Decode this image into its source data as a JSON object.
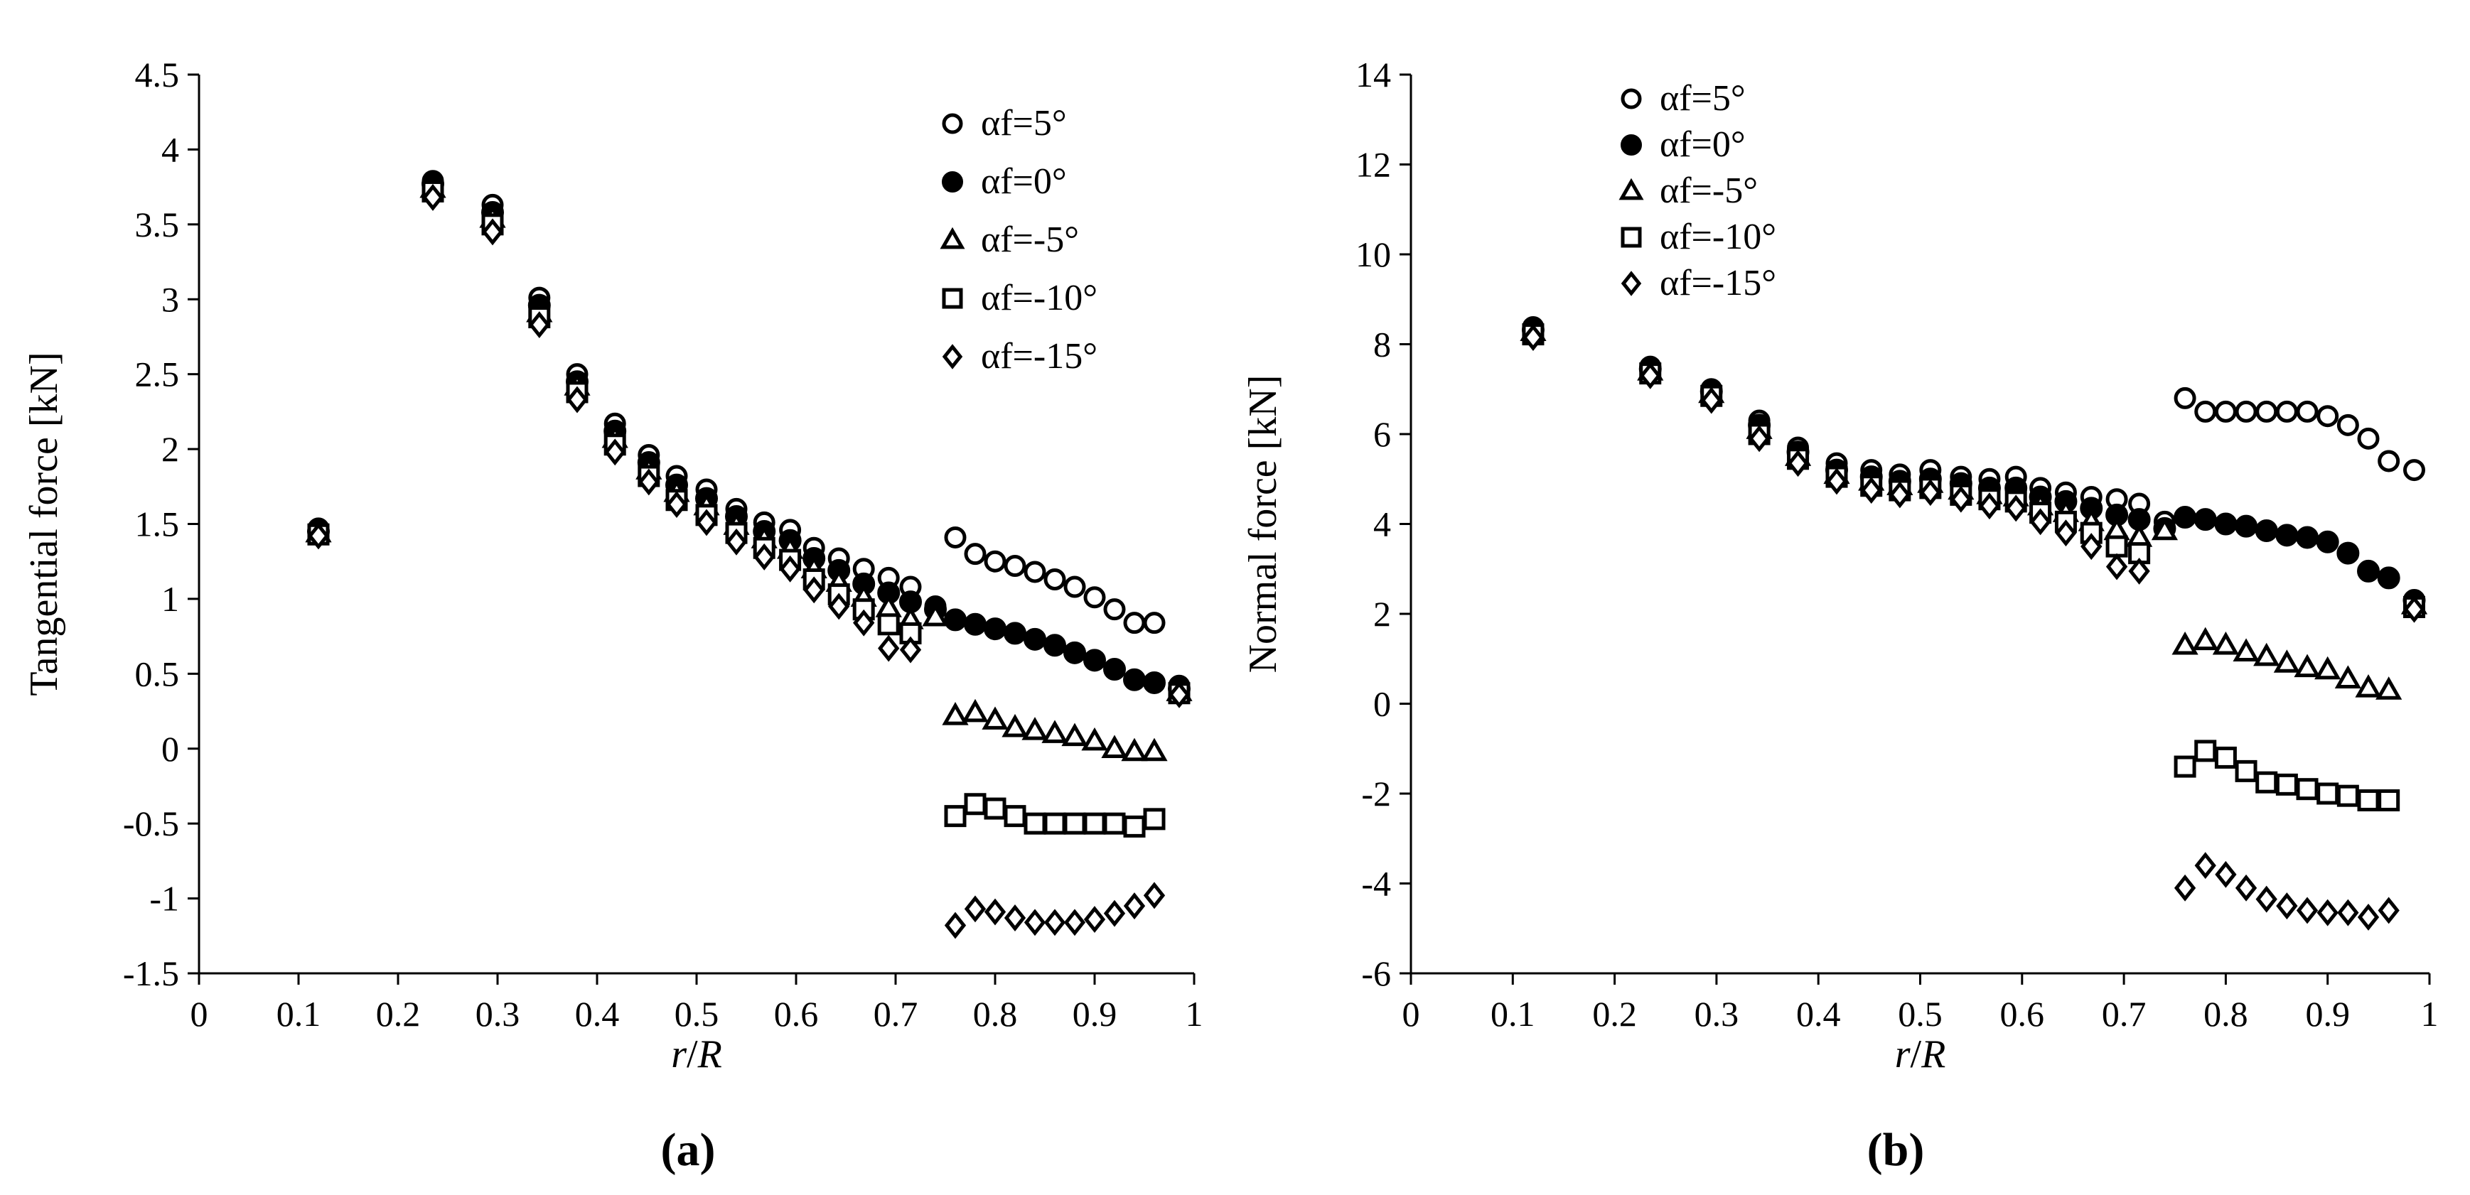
{
  "chart_data": [
    {
      "type": "scatter",
      "panel_label": "(a)",
      "xlabel_italic": "r",
      "xlabel_slash": "/",
      "xlabel_italic2": "R",
      "ylabel": "Tangential force [kN]",
      "xlim": [
        0,
        1
      ],
      "ylim": [
        -1.5,
        4.5
      ],
      "xticks": [
        0,
        0.1,
        0.2,
        0.3,
        0.4,
        0.5,
        0.6,
        0.7,
        0.8,
        0.9,
        1
      ],
      "xtick_labels": [
        "0",
        "0.1",
        "0.2",
        "0.3",
        "0.4",
        "0.5",
        "0.6",
        "0.7",
        "0.8",
        "0.9",
        "1"
      ],
      "yticks": [
        -1.5,
        -1,
        -0.5,
        0,
        0.5,
        1,
        1.5,
        2,
        2.5,
        3,
        3.5,
        4,
        4.5
      ],
      "ytick_labels": [
        "-1.5",
        "-1",
        "-0.5",
        "0",
        "0.5",
        "1",
        "1.5",
        "2",
        "2.5",
        "3",
        "3.5",
        "4",
        "4.5"
      ],
      "legend_position": "top-right",
      "series": [
        {
          "name": "αf=5°",
          "marker": "circle-open",
          "x": [
            0.12,
            0.235,
            0.295,
            0.342,
            0.38,
            0.418,
            0.452,
            0.48,
            0.51,
            0.54,
            0.568,
            0.594,
            0.618,
            0.643,
            0.668,
            0.693,
            0.715,
            0.74,
            0.76,
            0.78,
            0.8,
            0.82,
            0.84,
            0.86,
            0.88,
            0.9,
            0.92,
            0.94,
            0.96,
            0.985
          ],
          "y": [
            1.47,
            3.79,
            3.63,
            3.01,
            2.5,
            2.17,
            1.96,
            1.82,
            1.73,
            1.6,
            1.51,
            1.46,
            1.34,
            1.27,
            1.2,
            1.14,
            1.08,
            0.95,
            1.41,
            1.3,
            1.25,
            1.22,
            1.18,
            1.13,
            1.08,
            1.01,
            0.93,
            0.84,
            0.84,
            0.42
          ]
        },
        {
          "name": "αf=0°",
          "marker": "circle-filled",
          "x": [
            0.12,
            0.235,
            0.295,
            0.342,
            0.38,
            0.418,
            0.452,
            0.48,
            0.51,
            0.54,
            0.568,
            0.594,
            0.618,
            0.643,
            0.668,
            0.693,
            0.715,
            0.74,
            0.76,
            0.78,
            0.8,
            0.82,
            0.84,
            0.86,
            0.88,
            0.9,
            0.92,
            0.94,
            0.96,
            0.985
          ],
          "y": [
            1.45,
            3.77,
            3.58,
            2.96,
            2.45,
            2.12,
            1.91,
            1.76,
            1.67,
            1.55,
            1.45,
            1.39,
            1.27,
            1.19,
            1.1,
            1.04,
            0.98,
            0.93,
            0.86,
            0.83,
            0.8,
            0.77,
            0.73,
            0.69,
            0.64,
            0.59,
            0.53,
            0.46,
            0.44,
            0.4
          ]
        },
        {
          "name": "αf=-5°",
          "marker": "triangle-open",
          "x": [
            0.12,
            0.235,
            0.295,
            0.342,
            0.38,
            0.418,
            0.452,
            0.48,
            0.51,
            0.54,
            0.568,
            0.594,
            0.618,
            0.643,
            0.668,
            0.693,
            0.715,
            0.74,
            0.76,
            0.78,
            0.8,
            0.82,
            0.84,
            0.86,
            0.88,
            0.9,
            0.92,
            0.94,
            0.96,
            0.985
          ],
          "y": [
            1.44,
            3.74,
            3.54,
            2.91,
            2.42,
            2.07,
            1.86,
            1.71,
            1.62,
            1.49,
            1.4,
            1.33,
            1.2,
            1.11,
            1.01,
            0.94,
            0.86,
            0.88,
            0.22,
            0.24,
            0.19,
            0.14,
            0.12,
            0.1,
            0.08,
            0.05,
            0.0,
            -0.02,
            -0.02,
            0.38
          ]
        },
        {
          "name": "αf=-10°",
          "marker": "square-open",
          "x": [
            0.12,
            0.235,
            0.295,
            0.342,
            0.38,
            0.418,
            0.452,
            0.48,
            0.51,
            0.54,
            0.568,
            0.594,
            0.618,
            0.643,
            0.668,
            0.693,
            0.715,
            0.76,
            0.78,
            0.8,
            0.82,
            0.84,
            0.86,
            0.88,
            0.9,
            0.92,
            0.94,
            0.96,
            0.985
          ],
          "y": [
            1.43,
            3.72,
            3.5,
            2.88,
            2.38,
            2.03,
            1.82,
            1.66,
            1.56,
            1.44,
            1.34,
            1.26,
            1.13,
            1.03,
            0.93,
            0.83,
            0.77,
            -0.45,
            -0.37,
            -0.4,
            -0.45,
            -0.5,
            -0.5,
            -0.5,
            -0.5,
            -0.5,
            -0.52,
            -0.47,
            0.37
          ]
        },
        {
          "name": "αf=-15°",
          "marker": "diamond-open",
          "x": [
            0.12,
            0.235,
            0.295,
            0.342,
            0.38,
            0.418,
            0.452,
            0.48,
            0.51,
            0.54,
            0.568,
            0.594,
            0.618,
            0.643,
            0.668,
            0.693,
            0.715,
            0.76,
            0.78,
            0.8,
            0.82,
            0.84,
            0.86,
            0.88,
            0.9,
            0.92,
            0.94,
            0.96,
            0.985
          ],
          "y": [
            1.42,
            3.68,
            3.45,
            2.83,
            2.33,
            1.98,
            1.78,
            1.63,
            1.51,
            1.38,
            1.28,
            1.2,
            1.06,
            0.95,
            0.84,
            0.67,
            0.66,
            -1.18,
            -1.07,
            -1.09,
            -1.13,
            -1.16,
            -1.16,
            -1.16,
            -1.14,
            -1.1,
            -1.05,
            -0.98,
            0.36
          ]
        }
      ]
    },
    {
      "type": "scatter",
      "panel_label": "(b)",
      "xlabel_italic": "r",
      "xlabel_slash": "/",
      "xlabel_italic2": "R",
      "ylabel": "Normal  force [kN]",
      "xlim": [
        0,
        1
      ],
      "ylim": [
        -6,
        14
      ],
      "xticks": [
        0,
        0.1,
        0.2,
        0.3,
        0.4,
        0.5,
        0.6,
        0.7,
        0.8,
        0.9,
        1
      ],
      "xtick_labels": [
        "0",
        "0.1",
        "0.2",
        "0.3",
        "0.4",
        "0.5",
        "0.6",
        "0.7",
        "0.8",
        "0.9",
        "1"
      ],
      "yticks": [
        -6,
        -4,
        -2,
        0,
        2,
        4,
        6,
        8,
        10,
        12,
        14
      ],
      "ytick_labels": [
        "-6",
        "-4",
        "-2",
        "0",
        "2",
        "4",
        "6",
        "8",
        "10",
        "12",
        "14"
      ],
      "legend_position": "top-left",
      "series": [
        {
          "name": "αf=5°",
          "marker": "circle-open",
          "x": [
            0.12,
            0.235,
            0.295,
            0.342,
            0.38,
            0.418,
            0.452,
            0.48,
            0.51,
            0.54,
            0.568,
            0.594,
            0.618,
            0.643,
            0.668,
            0.693,
            0.715,
            0.74,
            0.76,
            0.78,
            0.8,
            0.82,
            0.84,
            0.86,
            0.88,
            0.9,
            0.92,
            0.94,
            0.96,
            0.985
          ],
          "y": [
            8.38,
            7.5,
            7.0,
            6.3,
            5.7,
            5.35,
            5.2,
            5.1,
            5.2,
            5.05,
            5.0,
            5.05,
            4.8,
            4.7,
            4.6,
            4.55,
            4.45,
            4.05,
            6.8,
            6.5,
            6.5,
            6.5,
            6.5,
            6.5,
            6.5,
            6.4,
            6.2,
            5.9,
            5.4,
            5.2
          ]
        },
        {
          "name": "αf=0°",
          "marker": "circle-filled",
          "x": [
            0.12,
            0.235,
            0.295,
            0.342,
            0.38,
            0.418,
            0.452,
            0.48,
            0.51,
            0.54,
            0.568,
            0.594,
            0.618,
            0.643,
            0.668,
            0.693,
            0.715,
            0.74,
            0.76,
            0.78,
            0.8,
            0.82,
            0.84,
            0.86,
            0.88,
            0.9,
            0.92,
            0.94,
            0.96,
            0.985
          ],
          "y": [
            8.32,
            7.45,
            6.95,
            6.2,
            5.6,
            5.2,
            5.05,
            4.95,
            5.0,
            4.9,
            4.8,
            4.8,
            4.6,
            4.5,
            4.35,
            4.2,
            4.1,
            3.9,
            4.15,
            4.1,
            4.0,
            3.95,
            3.85,
            3.75,
            3.7,
            3.6,
            3.35,
            2.95,
            2.8,
            2.3
          ]
        },
        {
          "name": "αf=-5°",
          "marker": "triangle-open",
          "x": [
            0.12,
            0.235,
            0.295,
            0.342,
            0.38,
            0.418,
            0.452,
            0.48,
            0.51,
            0.54,
            0.568,
            0.594,
            0.618,
            0.643,
            0.668,
            0.693,
            0.715,
            0.74,
            0.76,
            0.78,
            0.8,
            0.82,
            0.84,
            0.86,
            0.88,
            0.9,
            0.92,
            0.94,
            0.96,
            0.985
          ],
          "y": [
            8.28,
            7.4,
            6.9,
            6.1,
            5.5,
            5.1,
            4.95,
            4.85,
            4.9,
            4.75,
            4.65,
            4.6,
            4.4,
            4.25,
            4.05,
            3.85,
            3.7,
            3.85,
            1.3,
            1.4,
            1.3,
            1.15,
            1.05,
            0.9,
            0.8,
            0.75,
            0.55,
            0.35,
            0.3,
            2.2
          ]
        },
        {
          "name": "αf=-10°",
          "marker": "square-open",
          "x": [
            0.12,
            0.235,
            0.295,
            0.342,
            0.38,
            0.418,
            0.452,
            0.48,
            0.51,
            0.54,
            0.568,
            0.594,
            0.618,
            0.643,
            0.668,
            0.693,
            0.715,
            0.76,
            0.78,
            0.8,
            0.82,
            0.84,
            0.86,
            0.88,
            0.9,
            0.92,
            0.94,
            0.96,
            0.985
          ],
          "y": [
            8.22,
            7.35,
            6.85,
            6.0,
            5.45,
            5.05,
            4.85,
            4.75,
            4.8,
            4.65,
            4.55,
            4.5,
            4.25,
            4.05,
            3.8,
            3.5,
            3.35,
            -1.4,
            -1.05,
            -1.2,
            -1.5,
            -1.75,
            -1.8,
            -1.9,
            -2.0,
            -2.05,
            -2.15,
            -2.15,
            2.15
          ]
        },
        {
          "name": "αf=-15°",
          "marker": "diamond-open",
          "x": [
            0.12,
            0.235,
            0.295,
            0.342,
            0.38,
            0.418,
            0.452,
            0.48,
            0.51,
            0.54,
            0.568,
            0.594,
            0.618,
            0.643,
            0.668,
            0.693,
            0.715,
            0.76,
            0.78,
            0.8,
            0.82,
            0.84,
            0.86,
            0.88,
            0.9,
            0.92,
            0.94,
            0.96,
            0.985
          ],
          "y": [
            8.15,
            7.3,
            6.75,
            5.9,
            5.35,
            4.95,
            4.75,
            4.65,
            4.7,
            4.55,
            4.4,
            4.35,
            4.05,
            3.8,
            3.5,
            3.05,
            2.95,
            -4.1,
            -3.6,
            -3.8,
            -4.1,
            -4.35,
            -4.5,
            -4.6,
            -4.65,
            -4.65,
            -4.75,
            -4.6,
            2.1
          ]
        }
      ]
    }
  ]
}
